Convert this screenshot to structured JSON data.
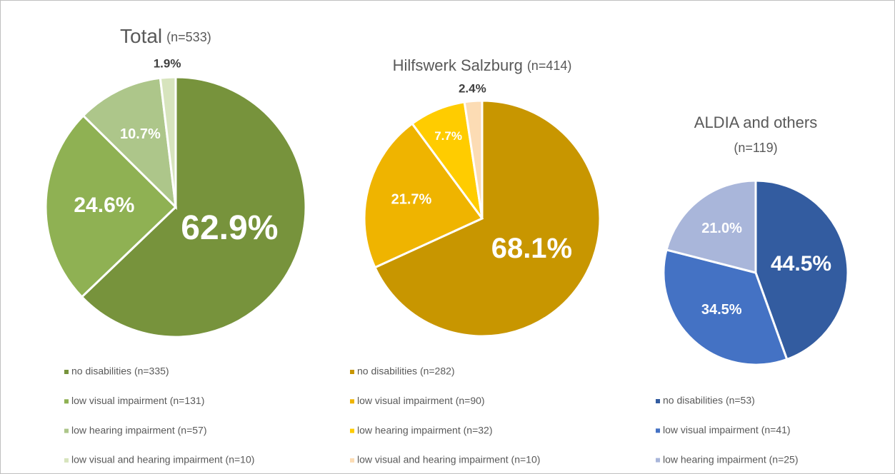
{
  "chart_data": [
    {
      "type": "pie",
      "title": "Total",
      "subtitle": "(n=533)",
      "categories": [
        "no disabilities (n=335)",
        "low visual impairment (n=131)",
        "low hearing impairment (n=57)",
        "low visual and hearing impairment (n=10)"
      ],
      "values": [
        62.9,
        24.6,
        10.7,
        1.9
      ],
      "value_labels": [
        "62.9%",
        "24.6%",
        "10.7%",
        "1.9%"
      ],
      "colors": [
        "#77933c",
        "#8fb153",
        "#adc68a",
        "#d7e4bd"
      ]
    },
    {
      "type": "pie",
      "title": "Hilfswerk Salzburg",
      "subtitle": "(n=414)",
      "categories": [
        "no disabilities (n=282)",
        "low visual impairment (n=90)",
        "low hearing impairment (n=32)",
        "low visual and hearing impairment (n=10)"
      ],
      "values": [
        68.1,
        21.7,
        7.7,
        2.4
      ],
      "value_labels": [
        "68.1%",
        "21.7%",
        "7.7%",
        "2.4%"
      ],
      "colors": [
        "#c89600",
        "#efb400",
        "#ffcc00",
        "#fcdcb4"
      ]
    },
    {
      "type": "pie",
      "title": "ALDIA and others",
      "subtitle": "(n=119)",
      "categories": [
        "no disabilities (n=53)",
        "low visual impairment (n=41)",
        "low hearing impairment (n=25)"
      ],
      "values": [
        44.5,
        34.5,
        21.0
      ],
      "value_labels": [
        "44.5%",
        "34.5%",
        "21.0%"
      ],
      "colors": [
        "#335ca0",
        "#4472c4",
        "#a9b6da"
      ]
    }
  ]
}
